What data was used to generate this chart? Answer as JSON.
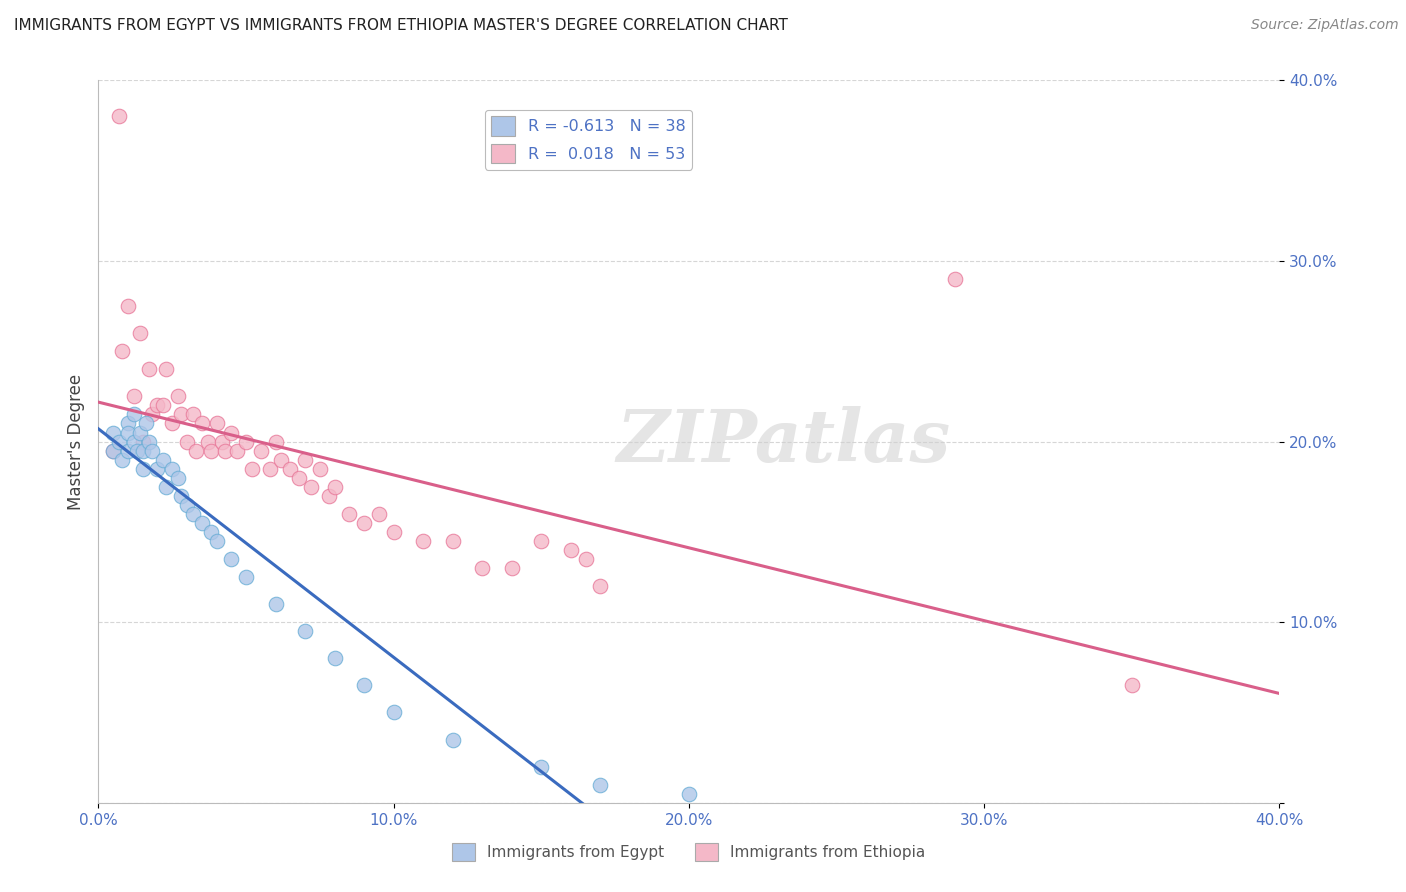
{
  "title": "IMMIGRANTS FROM EGYPT VS IMMIGRANTS FROM ETHIOPIA MASTER'S DEGREE CORRELATION CHART",
  "source": "Source: ZipAtlas.com",
  "ylabel": "Master's Degree",
  "xlim": [
    0.0,
    0.4
  ],
  "ylim": [
    0.0,
    0.4
  ],
  "xtick_vals": [
    0.0,
    0.1,
    0.2,
    0.3,
    0.4
  ],
  "ytick_vals": [
    0.0,
    0.1,
    0.2,
    0.3,
    0.4
  ],
  "egypt_color": "#aec6e8",
  "ethiopia_color": "#f4b8c8",
  "egypt_edge_color": "#6aaed6",
  "ethiopia_edge_color": "#e8799a",
  "line_egypt_color": "#3a6bbf",
  "line_ethiopia_color": "#d95f8a",
  "R_egypt": -0.613,
  "N_egypt": 38,
  "R_ethiopia": 0.018,
  "N_ethiopia": 53,
  "legend_label_egypt": "Immigrants from Egypt",
  "legend_label_ethiopia": "Immigrants from Ethiopia",
  "watermark": "ZIPatlas",
  "egypt_x": [
    0.005,
    0.005,
    0.007,
    0.008,
    0.01,
    0.01,
    0.01,
    0.012,
    0.012,
    0.013,
    0.014,
    0.015,
    0.015,
    0.016,
    0.017,
    0.018,
    0.02,
    0.022,
    0.023,
    0.025,
    0.027,
    0.028,
    0.03,
    0.032,
    0.035,
    0.038,
    0.04,
    0.045,
    0.05,
    0.06,
    0.07,
    0.08,
    0.09,
    0.1,
    0.12,
    0.15,
    0.17,
    0.2
  ],
  "egypt_y": [
    0.195,
    0.205,
    0.2,
    0.19,
    0.21,
    0.205,
    0.195,
    0.215,
    0.2,
    0.195,
    0.205,
    0.195,
    0.185,
    0.21,
    0.2,
    0.195,
    0.185,
    0.19,
    0.175,
    0.185,
    0.18,
    0.17,
    0.165,
    0.16,
    0.155,
    0.15,
    0.145,
    0.135,
    0.125,
    0.11,
    0.095,
    0.08,
    0.065,
    0.05,
    0.035,
    0.02,
    0.01,
    0.005
  ],
  "ethiopia_x": [
    0.005,
    0.007,
    0.008,
    0.01,
    0.012,
    0.014,
    0.015,
    0.017,
    0.018,
    0.02,
    0.022,
    0.023,
    0.025,
    0.027,
    0.028,
    0.03,
    0.032,
    0.033,
    0.035,
    0.037,
    0.038,
    0.04,
    0.042,
    0.043,
    0.045,
    0.047,
    0.05,
    0.052,
    0.055,
    0.058,
    0.06,
    0.062,
    0.065,
    0.068,
    0.07,
    0.072,
    0.075,
    0.078,
    0.08,
    0.085,
    0.09,
    0.095,
    0.1,
    0.11,
    0.12,
    0.13,
    0.14,
    0.15,
    0.16,
    0.165,
    0.17,
    0.29,
    0.35
  ],
  "ethiopia_y": [
    0.195,
    0.38,
    0.25,
    0.275,
    0.225,
    0.26,
    0.2,
    0.24,
    0.215,
    0.22,
    0.22,
    0.24,
    0.21,
    0.225,
    0.215,
    0.2,
    0.215,
    0.195,
    0.21,
    0.2,
    0.195,
    0.21,
    0.2,
    0.195,
    0.205,
    0.195,
    0.2,
    0.185,
    0.195,
    0.185,
    0.2,
    0.19,
    0.185,
    0.18,
    0.19,
    0.175,
    0.185,
    0.17,
    0.175,
    0.16,
    0.155,
    0.16,
    0.15,
    0.145,
    0.145,
    0.13,
    0.13,
    0.145,
    0.14,
    0.135,
    0.12,
    0.29,
    0.065
  ],
  "background_color": "#ffffff",
  "grid_color": "#cccccc",
  "marker_size": 110,
  "tick_color": "#4e72c4"
}
